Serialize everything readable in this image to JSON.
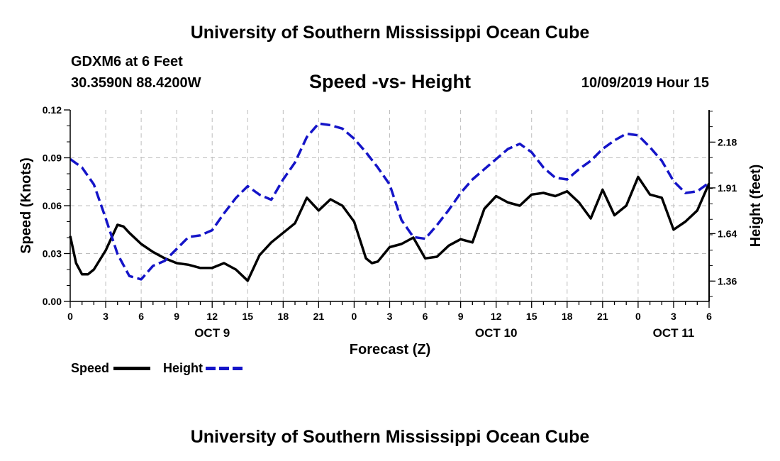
{
  "header": {
    "title": "University of Southern Mississippi Ocean Cube",
    "station": "GDXM6 at 6 Feet",
    "coords": "30.3590N 88.4200W",
    "chart_title": "Speed -vs- Height",
    "date": "10/09/2019 Hour 15"
  },
  "footer": {
    "title": "University of Southern Mississippi Ocean Cube"
  },
  "legend": {
    "speed_label": "Speed",
    "height_label": "Height"
  },
  "colors": {
    "speed": "#000000",
    "height": "#1414c8",
    "grid": "#bdbdbd"
  },
  "chart_data": {
    "type": "line",
    "title": "Speed -vs- Height",
    "xlabel": "Forecast (Z)",
    "ylabel": "Speed (Knots)",
    "y2label": "Height (feet)",
    "x_range": [
      0,
      54
    ],
    "ylim": [
      0,
      0.12
    ],
    "y2lim": [
      1.24,
      2.37
    ],
    "y_ticks": [
      "0.00",
      "0.03",
      "0.06",
      "0.09",
      "0.12"
    ],
    "y2_ticks": [
      "1.36",
      "1.64",
      "1.91",
      "2.18"
    ],
    "x_tick_labels": [
      "0",
      "3",
      "6",
      "9",
      "12",
      "15",
      "18",
      "21",
      "0",
      "3",
      "6",
      "9",
      "12",
      "15",
      "18",
      "21",
      "0",
      "3",
      "6"
    ],
    "day_labels": [
      {
        "label": "OCT 9",
        "x": 12
      },
      {
        "label": "OCT 10",
        "x": 36
      },
      {
        "label": "OCT 11",
        "x": 51
      }
    ],
    "grid": true,
    "legend_position": "bottom-left",
    "series": [
      {
        "name": "Speed",
        "axis": "left",
        "style": "solid",
        "x": [
          0,
          0.5,
          1,
          1.5,
          2,
          3,
          4,
          4.5,
          5,
          6,
          7,
          8,
          9,
          10,
          11,
          12,
          13,
          14,
          15,
          16,
          17,
          18,
          19,
          20,
          21,
          22,
          23,
          24,
          25,
          25.5,
          26,
          27,
          28,
          29,
          30,
          31,
          32,
          33,
          34,
          35,
          36,
          37,
          38,
          39,
          40,
          41,
          42,
          43,
          44,
          45,
          46,
          47,
          48,
          49,
          50,
          51,
          52,
          53,
          54
        ],
        "values": [
          0.041,
          0.024,
          0.017,
          0.017,
          0.02,
          0.032,
          0.048,
          0.047,
          0.043,
          0.036,
          0.031,
          0.027,
          0.024,
          0.023,
          0.021,
          0.021,
          0.024,
          0.02,
          0.013,
          0.029,
          0.037,
          0.043,
          0.049,
          0.065,
          0.057,
          0.064,
          0.06,
          0.05,
          0.027,
          0.024,
          0.025,
          0.034,
          0.036,
          0.04,
          0.027,
          0.028,
          0.035,
          0.039,
          0.037,
          0.058,
          0.066,
          0.062,
          0.06,
          0.067,
          0.068,
          0.066,
          0.069,
          0.062,
          0.052,
          0.07,
          0.054,
          0.06,
          0.078,
          0.067,
          0.065,
          0.045,
          0.05,
          0.057,
          0.074
        ]
      },
      {
        "name": "Height",
        "axis": "right",
        "style": "dashed",
        "x": [
          0,
          1,
          2,
          3,
          4,
          5,
          6,
          7,
          8,
          9,
          10,
          11,
          12,
          13,
          14,
          15,
          16,
          17,
          18,
          19,
          20,
          21,
          22,
          23,
          24,
          25,
          26,
          27,
          28,
          29,
          30,
          31,
          32,
          33,
          34,
          35,
          36,
          37,
          38,
          39,
          40,
          41,
          42,
          43,
          44,
          45,
          46,
          47,
          48,
          49,
          50,
          51,
          52,
          53,
          54
        ],
        "values": [
          2.08,
          2.03,
          1.93,
          1.73,
          1.52,
          1.39,
          1.37,
          1.45,
          1.48,
          1.55,
          1.62,
          1.63,
          1.66,
          1.76,
          1.85,
          1.92,
          1.87,
          1.84,
          1.96,
          2.06,
          2.21,
          2.29,
          2.28,
          2.26,
          2.2,
          2.12,
          2.03,
          1.93,
          1.72,
          1.62,
          1.61,
          1.69,
          1.78,
          1.88,
          1.96,
          2.02,
          2.08,
          2.14,
          2.17,
          2.12,
          2.03,
          1.97,
          1.96,
          2.02,
          2.07,
          2.14,
          2.19,
          2.23,
          2.22,
          2.15,
          2.07,
          1.95,
          1.88,
          1.89,
          1.94
        ]
      }
    ]
  }
}
